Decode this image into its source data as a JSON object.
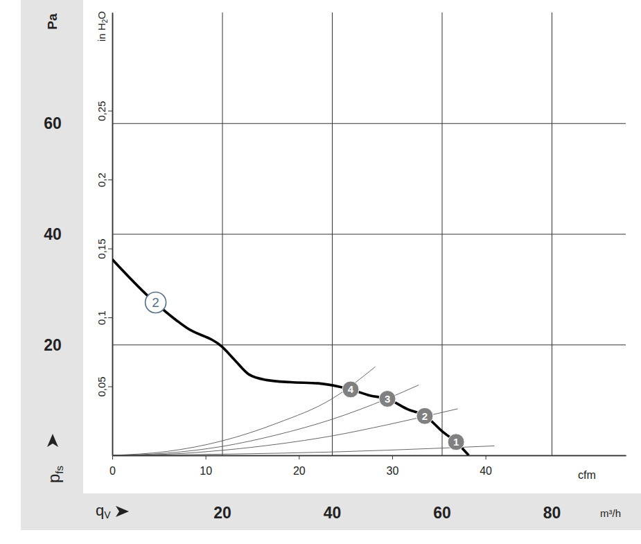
{
  "chart_data": {
    "type": "line",
    "y_title": "Pa",
    "y2_title": "in H2O",
    "y_label": "pfs",
    "x_label": "qV",
    "x_title": "m³/h",
    "x2_title": "cfm",
    "xlim": [
      0,
      93.5
    ],
    "xticks": [
      20,
      40,
      60,
      80
    ],
    "x2lim": [
      0,
      55.03
    ],
    "x2ticks": [
      0,
      10,
      20,
      30,
      40
    ],
    "ylim": [
      0,
      80
    ],
    "yticks": [
      20,
      40,
      60
    ],
    "y2lim": [
      0,
      0.3212
    ],
    "y2ticks": [
      {
        "value": 0.05,
        "label": "0,05"
      },
      {
        "value": 0.1,
        "label": "0,1"
      },
      {
        "value": 0.15,
        "label": "0,15"
      },
      {
        "value": 0.2,
        "label": "0,2"
      },
      {
        "value": 0.25,
        "label": "0,25"
      }
    ],
    "grid": true,
    "series": [
      {
        "color": "#000000",
        "line_style": "solid",
        "x": [
          0,
          6.7,
          13.6,
          20.0,
          22.4,
          24.9,
          28.1,
          32.5,
          37.5,
          41.3,
          43.4,
          46.9,
          50.1,
          53.8,
          57.0,
          60.1,
          62.6,
          64.9
        ],
        "values": [
          35.4,
          28.6,
          23.0,
          19.6,
          17.1,
          14.6,
          13.6,
          13.2,
          13.0,
          12.4,
          11.9,
          10.8,
          10.2,
          8.3,
          7.1,
          4.3,
          2.4,
          0
        ]
      },
      {
        "color": "#555555",
        "line_style": "solid",
        "x": [
          0,
          10,
          20,
          30,
          40,
          47.9
        ],
        "values": [
          0,
          0.7,
          2.6,
          5.8,
          10.2,
          16.0
        ]
      },
      {
        "color": "#555555",
        "line_style": "solid",
        "x": [
          0,
          10,
          20,
          30,
          40,
          50,
          55.8
        ],
        "values": [
          0,
          0.4,
          1.6,
          3.7,
          6.5,
          10.2,
          12.7
        ]
      },
      {
        "color": "#555555",
        "line_style": "solid",
        "x": [
          0,
          10,
          20,
          30,
          40,
          50,
          62.9
        ],
        "values": [
          0,
          0.2,
          0.9,
          2.0,
          3.5,
          5.5,
          8.4
        ]
      },
      {
        "color": "#555555",
        "line_style": "solid",
        "x": [
          0,
          20,
          40,
          60,
          69.6
        ],
        "values": [
          0,
          0.2,
          0.6,
          1.3,
          1.7
        ]
      }
    ],
    "annotations": [
      {
        "text": "2",
        "x": 7.9,
        "y": 27.6,
        "marker": "circle-outline"
      },
      {
        "text": "4",
        "x": 43.4,
        "y": 11.9,
        "marker": "circle-filled"
      },
      {
        "text": "3",
        "x": 50.1,
        "y": 10.2,
        "marker": "circle-filled"
      },
      {
        "text": "2",
        "x": 56.9,
        "y": 7.1,
        "marker": "circle-filled"
      },
      {
        "text": "1",
        "x": 62.6,
        "y": 2.4,
        "marker": "circle-filled"
      }
    ]
  }
}
